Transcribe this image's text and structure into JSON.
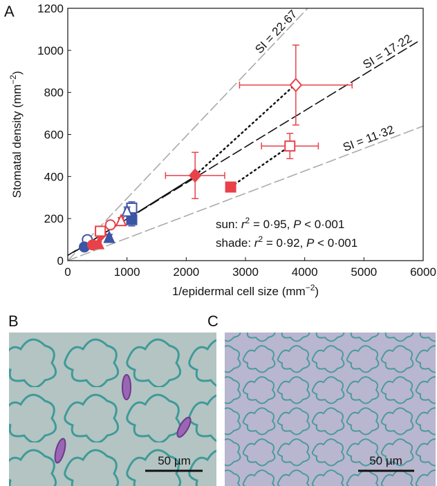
{
  "chart_data": {
    "type": "scatter",
    "panel_labels": [
      "A",
      "B",
      "C"
    ],
    "xlabel": [
      "1/epidermal cell size (mm",
      "−2",
      ")"
    ],
    "ylabel": [
      "Stomatal density (mm",
      "−2",
      ")"
    ],
    "xlim": [
      0,
      6000
    ],
    "ylim": [
      0,
      1200
    ],
    "xticks": [
      0,
      1000,
      2000,
      3000,
      4000,
      5000,
      6000
    ],
    "yticks": [
      0,
      200,
      400,
      600,
      800,
      1000,
      1200
    ],
    "reference_lines": [
      {
        "label": "SI = 22·67",
        "color": "#aaaaaa",
        "style": "dashed",
        "x": [
          0,
          4050
        ],
        "y": [
          0,
          1200
        ]
      },
      {
        "label": "SI = 17·22",
        "color": "#111111",
        "style": "dashed",
        "x": [
          0,
          5900
        ],
        "y": [
          25,
          1040
        ]
      },
      {
        "label": "SI = 11·32",
        "color": "#aaaaaa",
        "style": "dashed",
        "x": [
          0,
          6000
        ],
        "y": [
          0,
          640
        ]
      }
    ],
    "fit_lines": [
      {
        "color": "#111111",
        "style": "solid",
        "x": [
          100,
          2200
        ],
        "y": [
          40,
          410
        ]
      },
      {
        "color": "#111111",
        "style": "dotted",
        "x": [
          2150,
          3850
        ],
        "y": [
          405,
          840
        ]
      },
      {
        "color": "#111111",
        "style": "dotted",
        "x": [
          2750,
          3750
        ],
        "y": [
          350,
          545
        ]
      }
    ],
    "points": [
      {
        "x": 3850,
        "y": 835,
        "xerr": 950,
        "yerr": 190,
        "color": "#e8414a",
        "marker": "diamond",
        "filled": false
      },
      {
        "x": 2150,
        "y": 405,
        "xerr": 500,
        "yerr": 110,
        "color": "#e8414a",
        "marker": "diamond",
        "filled": true
      },
      {
        "x": 3750,
        "y": 545,
        "xerr": 480,
        "yerr": 60,
        "color": "#e8414a",
        "marker": "square",
        "filled": false
      },
      {
        "x": 2750,
        "y": 350,
        "xerr": 80,
        "yerr": 15,
        "color": "#e8414a",
        "marker": "square",
        "filled": true
      },
      {
        "x": 1080,
        "y": 250,
        "xerr": 60,
        "yerr": 30,
        "color": "#3d55a5",
        "marker": "square",
        "filled": false
      },
      {
        "x": 1080,
        "y": 195,
        "xerr": 60,
        "yerr": 30,
        "color": "#3d55a5",
        "marker": "square",
        "filled": true
      },
      {
        "x": 1000,
        "y": 235,
        "xerr": 40,
        "yerr": 20,
        "color": "#3d55a5",
        "marker": "triangle",
        "filled": false
      },
      {
        "x": 700,
        "y": 110,
        "xerr": 40,
        "yerr": 15,
        "color": "#3d55a5",
        "marker": "triangle",
        "filled": true
      },
      {
        "x": 330,
        "y": 100,
        "xerr": 30,
        "yerr": 10,
        "color": "#3d55a5",
        "marker": "circle",
        "filled": false
      },
      {
        "x": 280,
        "y": 65,
        "xerr": 30,
        "yerr": 10,
        "color": "#3d55a5",
        "marker": "circle",
        "filled": true
      },
      {
        "x": 420,
        "y": 75,
        "xerr": 40,
        "yerr": 10,
        "color": "#e8414a",
        "marker": "circle",
        "filled": true
      },
      {
        "x": 520,
        "y": 80,
        "xerr": 40,
        "yerr": 10,
        "color": "#e8414a",
        "marker": "triangle",
        "filled": true
      },
      {
        "x": 560,
        "y": 125,
        "xerr": 40,
        "yerr": 15,
        "color": "#e8414a",
        "marker": "diamond",
        "filled": true
      },
      {
        "x": 550,
        "y": 140,
        "xerr": 40,
        "yerr": 15,
        "color": "#e8414a",
        "marker": "square",
        "filled": false
      },
      {
        "x": 720,
        "y": 170,
        "xerr": 40,
        "yerr": 15,
        "color": "#e8414a",
        "marker": "circle",
        "filled": false
      },
      {
        "x": 900,
        "y": 190,
        "xerr": 40,
        "yerr": 15,
        "color": "#e8414a",
        "marker": "triangle",
        "filled": false
      }
    ],
    "annotations": [
      [
        "sun: ",
        "r",
        "2",
        " = 0·95, ",
        "P",
        " < 0·001"
      ],
      [
        "shade: ",
        "r",
        "2",
        " = 0·92, ",
        "P",
        " < 0·001"
      ]
    ],
    "scale_bars": [
      "50 µm",
      "50 µm"
    ]
  }
}
